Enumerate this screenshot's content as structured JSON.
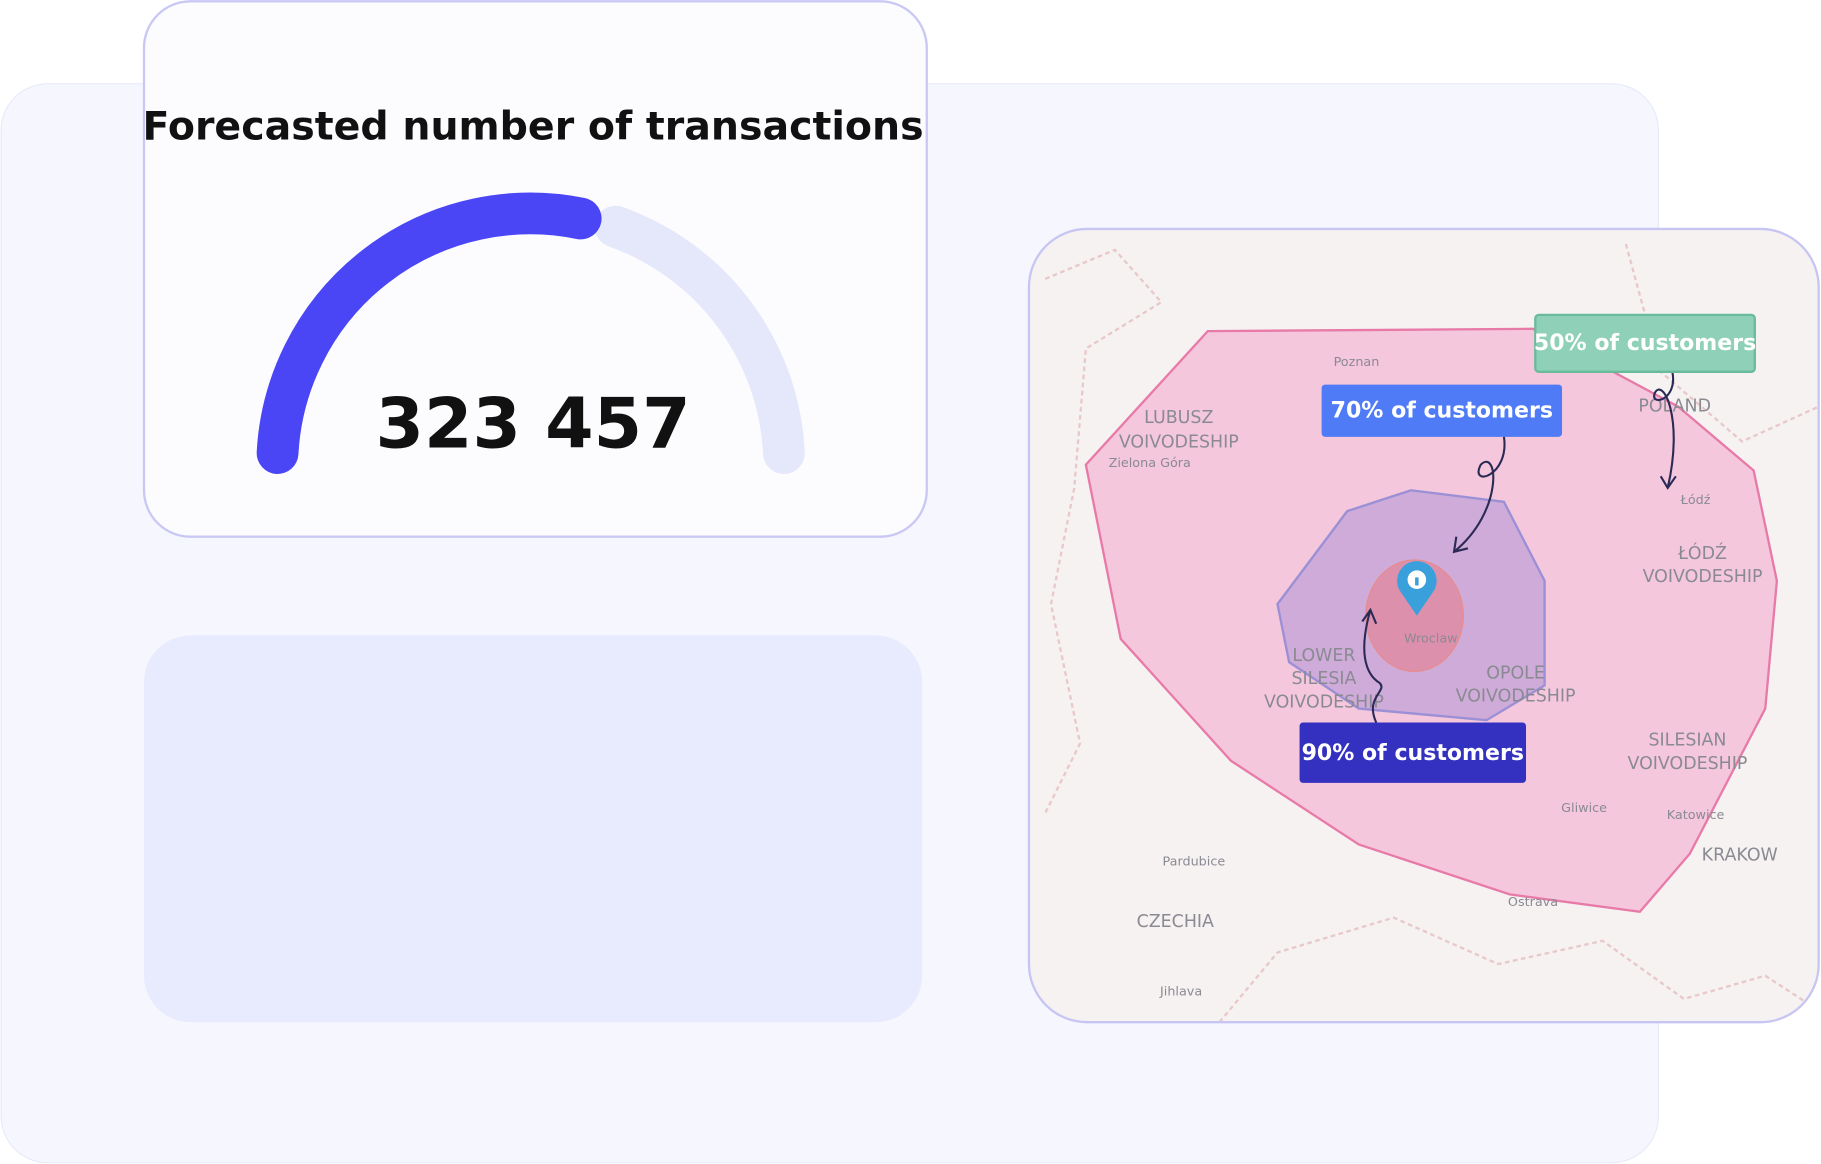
{
  "gauge_card": {
    "title": "Forecasted number of transactions",
    "value": "323 457"
  },
  "map": {
    "callouts": [
      "50% of customers",
      "70% of customers",
      "90% of customers"
    ],
    "places": [
      [
        "Poznan"
      ],
      [
        "LUBUSZ",
        "VOIVODESHIP"
      ],
      [
        "Zielona Góra"
      ],
      [
        "POLAND"
      ],
      [
        "Łódź"
      ],
      [
        "ŁÓDŹ",
        "VOIVODESHIP"
      ],
      [
        "LOWER",
        "SILESIA",
        "VOIVODESHIP"
      ],
      [
        "Wroclaw"
      ],
      [
        "OPOLE",
        "VOIVODESHIP"
      ],
      [
        "SILESIAN",
        "VOIVODESHIP"
      ],
      [
        "Gliwice"
      ],
      [
        "Katowice"
      ],
      [
        "KRAKOW"
      ],
      [
        "Pardubice"
      ],
      [
        "Ostrava"
      ],
      [
        "CZECHIA"
      ],
      [
        "Jihlava"
      ]
    ]
  }
}
